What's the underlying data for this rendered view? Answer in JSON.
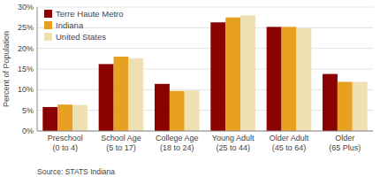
{
  "chart_data": {
    "type": "bar",
    "categories": [
      "Preschool\n(0 to 4)",
      "School Age\n(5 to 17)",
      "College Age\n(18 to 24)",
      "Young Adult\n(25 to 44)",
      "Older Adult\n(45 to 64)",
      "Older\n(65 Plus)"
    ],
    "series": [
      {
        "name": "Terre Haute Metro",
        "color": "#8B0000",
        "values": [
          5.8,
          16.2,
          11.4,
          26.3,
          25.2,
          13.8
        ]
      },
      {
        "name": "Indiana",
        "color": "#E8A020",
        "values": [
          6.4,
          18.0,
          9.7,
          27.5,
          25.2,
          11.9
        ]
      },
      {
        "name": "United States",
        "color": "#EEE0B0",
        "values": [
          6.3,
          17.6,
          9.8,
          28.0,
          24.9,
          11.9
        ]
      }
    ],
    "y_label": "Percent of Population",
    "ylim": [
      0,
      30
    ],
    "yticks": [
      {
        "value": 0,
        "label": "0%"
      },
      {
        "value": 5,
        "label": "5%"
      },
      {
        "value": 10,
        "label": "10%"
      },
      {
        "value": 15,
        "label": "15%"
      },
      {
        "value": 20,
        "label": "20%"
      },
      {
        "value": 25,
        "label": "25%"
      },
      {
        "value": 30,
        "label": "30%"
      }
    ],
    "annotations": [
      "Source: STATS Indiana"
    ],
    "grid": true,
    "legend": "upper-left"
  }
}
